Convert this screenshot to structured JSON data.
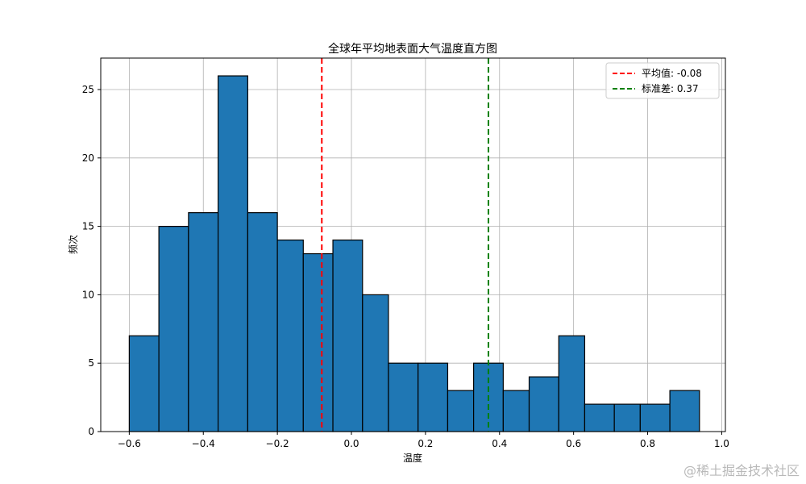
{
  "chart_data": {
    "type": "bar",
    "title": "全球年平均地表面大气温度直方图",
    "xlabel": "温度",
    "ylabel": "频次",
    "bins": [
      {
        "start": -0.6,
        "end": -0.52,
        "count": 7
      },
      {
        "start": -0.52,
        "end": -0.44,
        "count": 15
      },
      {
        "start": -0.44,
        "end": -0.36,
        "count": 16
      },
      {
        "start": -0.36,
        "end": -0.28,
        "count": 26
      },
      {
        "start": -0.28,
        "end": -0.2,
        "count": 16
      },
      {
        "start": -0.2,
        "end": -0.13,
        "count": 14
      },
      {
        "start": -0.13,
        "end": -0.05,
        "count": 13
      },
      {
        "start": -0.05,
        "end": 0.03,
        "count": 14
      },
      {
        "start": 0.03,
        "end": 0.1,
        "count": 10
      },
      {
        "start": 0.1,
        "end": 0.18,
        "count": 5
      },
      {
        "start": 0.18,
        "end": 0.26,
        "count": 5
      },
      {
        "start": 0.26,
        "end": 0.33,
        "count": 3
      },
      {
        "start": 0.33,
        "end": 0.41,
        "count": 5
      },
      {
        "start": 0.41,
        "end": 0.48,
        "count": 3
      },
      {
        "start": 0.48,
        "end": 0.56,
        "count": 4
      },
      {
        "start": 0.56,
        "end": 0.63,
        "count": 7
      },
      {
        "start": 0.63,
        "end": 0.71,
        "count": 2
      },
      {
        "start": 0.71,
        "end": 0.78,
        "count": 2
      },
      {
        "start": 0.78,
        "end": 0.86,
        "count": 2
      },
      {
        "start": 0.86,
        "end": 0.94,
        "count": 3
      }
    ],
    "mean_line": {
      "value": -0.08,
      "color": "#ff0000",
      "label": "平均值: -0.08"
    },
    "std_line": {
      "value": 0.37,
      "color": "#008000",
      "label": "标准差: 0.37"
    },
    "xlim": [
      -0.677,
      1.01
    ],
    "ylim": [
      0,
      27.3
    ],
    "xticks": [
      {
        "value": -0.6,
        "label": "−0.6"
      },
      {
        "value": -0.4,
        "label": "−0.4"
      },
      {
        "value": -0.2,
        "label": "−0.2"
      },
      {
        "value": 0.0,
        "label": "0.0"
      },
      {
        "value": 0.2,
        "label": "0.2"
      },
      {
        "value": 0.4,
        "label": "0.4"
      },
      {
        "value": 0.6,
        "label": "0.6"
      },
      {
        "value": 0.8,
        "label": "0.8"
      },
      {
        "value": 1.0,
        "label": "1.0"
      }
    ],
    "yticks": [
      {
        "value": 0,
        "label": "0"
      },
      {
        "value": 5,
        "label": "5"
      },
      {
        "value": 10,
        "label": "10"
      },
      {
        "value": 15,
        "label": "15"
      },
      {
        "value": 20,
        "label": "20"
      },
      {
        "value": 25,
        "label": "25"
      }
    ],
    "grid": true,
    "legend_position": "top-right",
    "bar_color": "#1f77b4",
    "bar_edge_color": "#000000"
  },
  "watermark": "@稀土掘金技术社区"
}
